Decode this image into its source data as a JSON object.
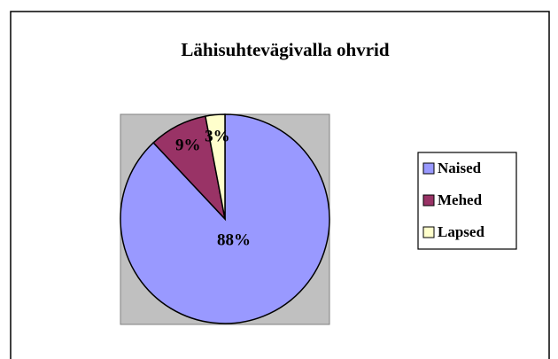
{
  "chart_data": {
    "type": "pie",
    "title": "Lähisuhtevägivalla ohvrid",
    "categories": [
      "Naised",
      "Mehed",
      "Lapsed"
    ],
    "values": [
      88,
      9,
      3
    ],
    "value_labels": [
      "88%",
      "9%",
      "3%"
    ],
    "colors": [
      "#9999FF",
      "#993366",
      "#FFFFCC"
    ],
    "legend": "right"
  }
}
